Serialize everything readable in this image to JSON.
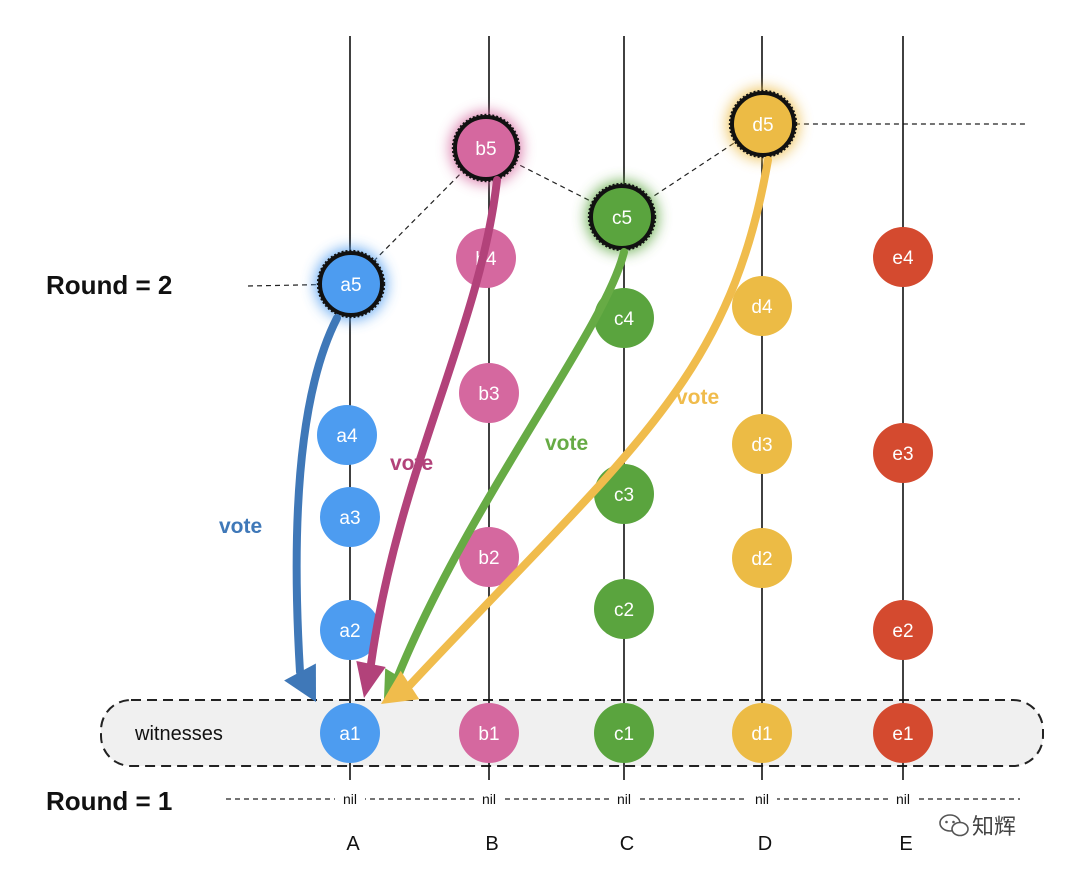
{
  "rounds": {
    "round2": "Round = 2",
    "round1": "Round = 1"
  },
  "witness_label": "witnesses",
  "nil_text": "nil",
  "columns": [
    {
      "id": "A",
      "label": "A",
      "color": "#4d9cf0"
    },
    {
      "id": "B",
      "label": "B",
      "color": "#d5689f"
    },
    {
      "id": "C",
      "label": "C",
      "color": "#5aa43e"
    },
    {
      "id": "D",
      "label": "D",
      "color": "#ecbb45"
    },
    {
      "id": "E",
      "label": "E",
      "color": "#d44a2f"
    }
  ],
  "events": [
    {
      "name": "a1",
      "column": "A",
      "witness": true
    },
    {
      "name": "a2",
      "column": "A"
    },
    {
      "name": "a3",
      "column": "A"
    },
    {
      "name": "a4",
      "column": "A"
    },
    {
      "name": "a5",
      "column": "A",
      "round2_witness": true
    },
    {
      "name": "b1",
      "column": "B",
      "witness": true
    },
    {
      "name": "b2",
      "column": "B"
    },
    {
      "name": "b3",
      "column": "B"
    },
    {
      "name": "b4",
      "column": "B"
    },
    {
      "name": "b5",
      "column": "B",
      "round2_witness": true
    },
    {
      "name": "c1",
      "column": "C",
      "witness": true
    },
    {
      "name": "c2",
      "column": "C"
    },
    {
      "name": "c3",
      "column": "C"
    },
    {
      "name": "c4",
      "column": "C"
    },
    {
      "name": "c5",
      "column": "C",
      "round2_witness": true
    },
    {
      "name": "d1",
      "column": "D",
      "witness": true
    },
    {
      "name": "d2",
      "column": "D"
    },
    {
      "name": "d3",
      "column": "D"
    },
    {
      "name": "d4",
      "column": "D"
    },
    {
      "name": "d5",
      "column": "D",
      "round2_witness": true
    },
    {
      "name": "e1",
      "column": "E",
      "witness": true
    },
    {
      "name": "e2",
      "column": "E"
    },
    {
      "name": "e3",
      "column": "E"
    },
    {
      "name": "e4",
      "column": "E"
    }
  ],
  "votes": [
    {
      "from": "a5",
      "to": "a1",
      "label": "vote",
      "color": "#3f78b8"
    },
    {
      "from": "b5",
      "to": "a1",
      "label": "vote",
      "color": "#b2427a"
    },
    {
      "from": "c5",
      "to": "a1",
      "label": "vote",
      "color": "#67ab45"
    },
    {
      "from": "d5",
      "to": "a1",
      "label": "vote",
      "color": "#f0bc4c"
    }
  ],
  "watermark": {
    "text": "知辉",
    "icon": "wechat-icon"
  }
}
